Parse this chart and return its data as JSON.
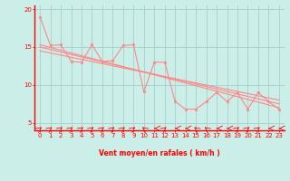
{
  "background_color": "#cceee8",
  "grid_color": "#aad4ce",
  "line_color": "#ff8888",
  "axis_color": "#ff0000",
  "xlabel": "Vent moyen/en rafales ( km/h )",
  "xlim": [
    -0.5,
    23.5
  ],
  "ylim": [
    4.0,
    20.5
  ],
  "yticks": [
    5,
    10,
    15,
    20
  ],
  "xticks": [
    0,
    1,
    2,
    3,
    4,
    5,
    6,
    7,
    8,
    9,
    10,
    11,
    12,
    13,
    14,
    15,
    16,
    17,
    18,
    19,
    20,
    21,
    22,
    23
  ],
  "jagged": {
    "x": [
      0,
      1,
      2,
      3,
      4,
      5,
      6,
      7,
      8,
      9,
      10,
      11,
      12,
      13,
      14,
      15,
      16,
      17,
      18,
      19,
      20,
      21,
      22,
      23
    ],
    "y": [
      19.0,
      15.2,
      15.3,
      13.1,
      13.0,
      15.3,
      13.1,
      13.2,
      15.2,
      15.3,
      9.1,
      13.0,
      13.0,
      7.8,
      6.8,
      6.8,
      7.8,
      9.0,
      7.8,
      9.0,
      6.8,
      9.0,
      7.8,
      6.8
    ]
  },
  "trend1": {
    "x": [
      0,
      23
    ],
    "y": [
      15.3,
      7.0
    ]
  },
  "trend2": {
    "x": [
      0,
      23
    ],
    "y": [
      15.0,
      7.5
    ]
  },
  "trend3": {
    "x": [
      0,
      23
    ],
    "y": [
      14.5,
      8.0
    ]
  },
  "arrow_angles": [
    45,
    45,
    45,
    45,
    45,
    45,
    45,
    45,
    45,
    45,
    315,
    270,
    45,
    270,
    270,
    315,
    315,
    270,
    270,
    45,
    45,
    45,
    270
  ],
  "font_color": "#ff0000"
}
